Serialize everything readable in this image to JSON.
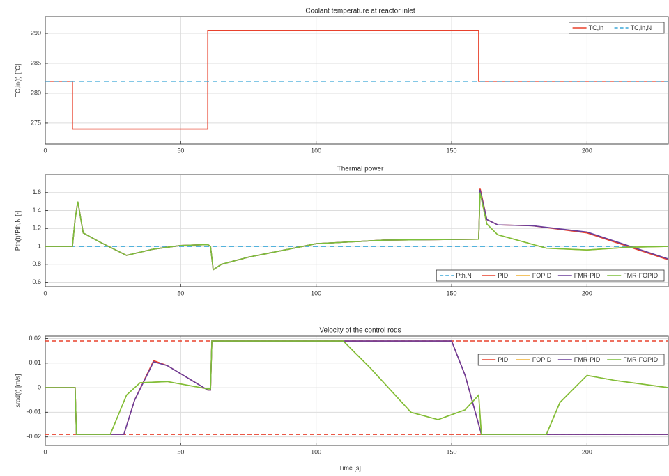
{
  "chart_data": [
    {
      "type": "line",
      "title": "Coolant temperature at reactor inlet",
      "ylabel": "TC,in(t) [°C]",
      "xlim": [
        0,
        230
      ],
      "xticks": [
        0,
        50,
        100,
        150,
        200
      ],
      "ylim": [
        271.5,
        292.8
      ],
      "yticks": [
        275,
        280,
        285,
        290
      ],
      "grid": true,
      "legend": "upper right",
      "series": [
        {
          "name": "TC,in",
          "color": "#e8412c",
          "dashed": false,
          "x": [
            0,
            10,
            10,
            60,
            60,
            160,
            160,
            230
          ],
          "values": [
            282,
            282,
            274,
            274,
            290.5,
            290.5,
            282,
            282
          ]
        },
        {
          "name": "TC,in,N",
          "color": "#3ba7d8",
          "dashed": true,
          "x": [
            0,
            230
          ],
          "values": [
            282,
            282
          ]
        }
      ]
    },
    {
      "type": "line",
      "title": "Thermal power",
      "ylabel": "Pth(t)/Pth,N [-]",
      "xlim": [
        0,
        230
      ],
      "xticks": [
        0,
        50,
        100,
        150,
        200
      ],
      "ylim": [
        0.55,
        1.8
      ],
      "yticks": [
        0.6,
        0.8,
        1,
        1.2,
        1.4,
        1.6
      ],
      "grid": true,
      "legend": "lower right",
      "series": [
        {
          "name": "Pth,N",
          "color": "#3ba7d8",
          "dashed": true,
          "x": [
            0,
            230
          ],
          "values": [
            1,
            1
          ]
        },
        {
          "name": "PID",
          "color": "#e8412c",
          "dashed": false,
          "x": [
            0,
            10,
            11,
            12,
            14,
            20,
            30,
            40,
            50,
            60,
            61,
            62,
            65,
            75,
            100,
            125,
            160,
            160.5,
            163,
            167,
            180,
            200,
            215,
            230
          ],
          "values": [
            1,
            1,
            1.3,
            1.5,
            1.15,
            1.05,
            0.9,
            0.97,
            1.01,
            1.02,
            1.0,
            0.74,
            0.8,
            0.88,
            1.03,
            1.07,
            1.08,
            1.65,
            1.3,
            1.24,
            1.23,
            1.15,
            1.0,
            0.85
          ]
        },
        {
          "name": "FOPID",
          "color": "#f0b030",
          "dashed": false,
          "x": [
            0,
            10,
            11,
            12,
            14,
            20,
            30,
            40,
            50,
            60,
            61,
            62,
            65,
            75,
            100,
            125,
            160,
            160.5,
            163,
            167,
            185,
            200,
            215,
            230
          ],
          "values": [
            1,
            1,
            1.3,
            1.5,
            1.15,
            1.05,
            0.9,
            0.97,
            1.01,
            1.02,
            1.0,
            0.74,
            0.8,
            0.88,
            1.03,
            1.07,
            1.08,
            1.6,
            1.25,
            1.13,
            0.98,
            0.96,
            0.99,
            1.0
          ]
        },
        {
          "name": "FMR-PID",
          "color": "#6a3d9a",
          "dashed": false,
          "x": [
            0,
            10,
            11,
            12,
            14,
            20,
            30,
            40,
            50,
            60,
            61,
            62,
            65,
            75,
            100,
            125,
            160,
            160.5,
            163,
            167,
            180,
            200,
            215,
            230
          ],
          "values": [
            1,
            1,
            1.3,
            1.5,
            1.15,
            1.05,
            0.9,
            0.97,
            1.01,
            1.02,
            1.0,
            0.74,
            0.8,
            0.88,
            1.03,
            1.07,
            1.08,
            1.63,
            1.3,
            1.24,
            1.23,
            1.16,
            1.01,
            0.86
          ]
        },
        {
          "name": "FMR-FOPID",
          "color": "#7cbf3a",
          "dashed": false,
          "x": [
            0,
            10,
            11,
            12,
            14,
            20,
            30,
            40,
            50,
            60,
            61,
            62,
            65,
            75,
            100,
            125,
            160,
            160.5,
            163,
            167,
            185,
            200,
            215,
            230
          ],
          "values": [
            1,
            1,
            1.3,
            1.5,
            1.15,
            1.05,
            0.9,
            0.97,
            1.01,
            1.02,
            1.0,
            0.74,
            0.8,
            0.88,
            1.03,
            1.07,
            1.08,
            1.6,
            1.25,
            1.13,
            0.98,
            0.96,
            0.99,
            1.0
          ]
        }
      ]
    },
    {
      "type": "line",
      "title": "Velocity of the control rods",
      "ylabel": "srod(t) [m/s]",
      "xlabel": "Time [s]",
      "xlim": [
        0,
        230
      ],
      "xticks": [
        0,
        50,
        100,
        150,
        200
      ],
      "ylim": [
        -0.0235,
        0.021
      ],
      "yticks": [
        -0.02,
        -0.01,
        0,
        0.01,
        0.02
      ],
      "grid": true,
      "legend": "upper right",
      "limits": [
        -0.019,
        0.019
      ],
      "limits_color": "#e8412c",
      "series": [
        {
          "name": "PID",
          "color": "#e8412c",
          "dashed": false,
          "x": [
            0,
            11,
            11.5,
            29,
            33,
            40,
            45,
            60,
            61,
            61.5,
            150,
            155,
            160,
            161,
            230
          ],
          "values": [
            0,
            0,
            -0.019,
            -0.019,
            -0.005,
            0.011,
            0.009,
            -0.001,
            -0.001,
            0.019,
            0.019,
            0.005,
            -0.015,
            -0.019,
            -0.019
          ]
        },
        {
          "name": "FOPID",
          "color": "#f0b030",
          "dashed": false,
          "x": [
            0,
            11,
            11.5,
            24,
            30,
            35,
            45,
            60,
            61,
            61.5,
            110,
            120,
            135,
            145,
            155,
            160,
            161,
            185,
            190,
            200,
            210,
            230
          ],
          "values": [
            0,
            0,
            -0.019,
            -0.019,
            -0.003,
            0.002,
            0.0025,
            -0.0005,
            -0.0005,
            0.019,
            0.019,
            0.008,
            -0.01,
            -0.013,
            -0.009,
            -0.003,
            -0.019,
            -0.019,
            -0.006,
            0.005,
            0.003,
            0
          ]
        },
        {
          "name": "FMR-PID",
          "color": "#6a3d9a",
          "dashed": false,
          "x": [
            0,
            11,
            11.5,
            29,
            33,
            40,
            45,
            60,
            61,
            61.5,
            150,
            155,
            160,
            161,
            230
          ],
          "values": [
            0,
            0,
            -0.019,
            -0.019,
            -0.005,
            0.0105,
            0.009,
            -0.001,
            -0.001,
            0.019,
            0.019,
            0.005,
            -0.015,
            -0.019,
            -0.019
          ]
        },
        {
          "name": "FMR-FOPID",
          "color": "#7cbf3a",
          "dashed": false,
          "x": [
            0,
            11,
            11.5,
            24,
            30,
            35,
            45,
            60,
            61,
            61.5,
            110,
            120,
            135,
            145,
            155,
            160,
            161,
            185,
            190,
            200,
            210,
            230
          ],
          "values": [
            0,
            0,
            -0.019,
            -0.019,
            -0.003,
            0.002,
            0.0025,
            -0.0005,
            -0.0005,
            0.019,
            0.019,
            0.008,
            -0.01,
            -0.013,
            -0.009,
            -0.003,
            -0.019,
            -0.019,
            -0.006,
            0.005,
            0.003,
            0
          ]
        }
      ]
    }
  ]
}
